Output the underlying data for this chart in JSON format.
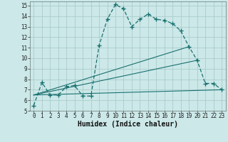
{
  "xlabel": "Humidex (Indice chaleur)",
  "bg_color": "#cce8e8",
  "grid_color": "#aacccc",
  "line_color": "#1a7070",
  "xlim": [
    -0.5,
    23.5
  ],
  "ylim": [
    5,
    15.4
  ],
  "xticks": [
    0,
    1,
    2,
    3,
    4,
    5,
    6,
    7,
    8,
    9,
    10,
    11,
    12,
    13,
    14,
    15,
    16,
    17,
    18,
    19,
    20,
    21,
    22,
    23
  ],
  "yticks": [
    5,
    6,
    7,
    8,
    9,
    10,
    11,
    12,
    13,
    14,
    15
  ],
  "curve1_x": [
    0,
    1,
    2,
    3,
    4,
    5,
    6,
    7,
    8,
    9,
    10,
    11,
    12,
    13,
    14,
    15,
    16,
    17,
    18,
    19,
    20,
    21,
    22,
    23
  ],
  "curve1_y": [
    5.5,
    7.7,
    6.5,
    6.5,
    7.3,
    7.4,
    6.4,
    6.4,
    11.2,
    13.7,
    15.1,
    14.7,
    13.0,
    13.7,
    14.2,
    13.7,
    13.6,
    13.3,
    12.6,
    11.1,
    9.8,
    7.6,
    7.6,
    7.0
  ],
  "line2_x": [
    0,
    19
  ],
  "line2_y": [
    6.5,
    11.1
  ],
  "line3_x": [
    0,
    20
  ],
  "line3_y": [
    6.5,
    9.8
  ],
  "line4_x": [
    0,
    23
  ],
  "line4_y": [
    6.5,
    7.0
  ],
  "tick_fontsize": 5.5,
  "xlabel_fontsize": 7
}
